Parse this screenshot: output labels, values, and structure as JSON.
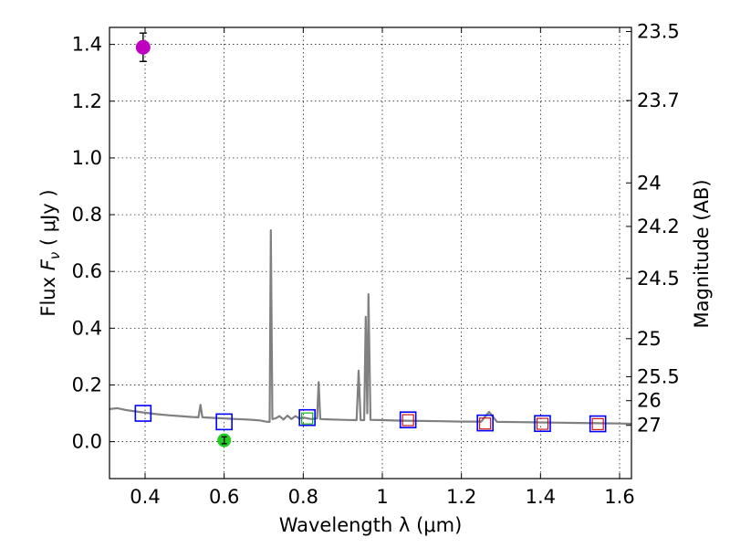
{
  "chart_data": {
    "type": "scatter",
    "title": "",
    "xlabel": "Wavelength  λ (μm)",
    "ylabel": "Flux  F_ν  ( μJy )",
    "ylabel_text": {
      "prefix": "Flux  ",
      "var": "F",
      "sub": "ν",
      "suffix": "  ( μJy )"
    },
    "ylabel_right": "Magnitude (AB)",
    "xlim": [
      0.31,
      1.63
    ],
    "ylim": [
      -0.13,
      1.46
    ],
    "grid": true,
    "x_ticks": [
      0.4,
      0.6,
      0.8,
      1.0,
      1.2,
      1.4,
      1.6
    ],
    "x_tick_labels": [
      "0.4",
      "0.6",
      "0.8",
      "1",
      "1.2",
      "1.4",
      "1.6"
    ],
    "y_ticks": [
      0.0,
      0.2,
      0.4,
      0.6,
      0.8,
      1.0,
      1.2,
      1.4
    ],
    "y_tick_labels": [
      "0.0",
      "0.2",
      "0.4",
      "0.6",
      "0.8",
      "1.0",
      "1.2",
      "1.4"
    ],
    "right_ticks": [
      {
        "label": "23.5",
        "mag": 23.5
      },
      {
        "label": "23.7",
        "mag": 23.7
      },
      {
        "label": "24",
        "mag": 24.0
      },
      {
        "label": "24.2",
        "mag": 24.2
      },
      {
        "label": "24.5",
        "mag": 24.5
      },
      {
        "label": "25",
        "mag": 25.0
      },
      {
        "label": "25.5",
        "mag": 25.5
      },
      {
        "label": "26",
        "mag": 26.0
      },
      {
        "label": "27",
        "mag": 27.0
      }
    ],
    "colors": {
      "model": "#808080",
      "model_square": "#0000ff",
      "observed_square": "#cc0000",
      "green_square": "#00aa00",
      "magenta_point": "#bf00bf",
      "green_point": "#22cc22",
      "errorbar": "#000000"
    },
    "series": [
      {
        "name": "model spectrum",
        "style": "line",
        "points": [
          [
            0.31,
            0.115
          ],
          [
            0.33,
            0.118
          ],
          [
            0.35,
            0.112
          ],
          [
            0.37,
            0.108
          ],
          [
            0.4,
            0.102
          ],
          [
            0.43,
            0.097
          ],
          [
            0.46,
            0.093
          ],
          [
            0.49,
            0.09
          ],
          [
            0.52,
            0.087
          ],
          [
            0.535,
            0.086
          ],
          [
            0.54,
            0.13
          ],
          [
            0.545,
            0.086
          ],
          [
            0.57,
            0.084
          ],
          [
            0.6,
            0.082
          ],
          [
            0.63,
            0.08
          ],
          [
            0.66,
            0.078
          ],
          [
            0.69,
            0.075
          ],
          [
            0.71,
            0.07
          ],
          [
            0.715,
            0.07
          ],
          [
            0.718,
            0.745
          ],
          [
            0.722,
            0.08
          ],
          [
            0.73,
            0.082
          ],
          [
            0.74,
            0.09
          ],
          [
            0.75,
            0.078
          ],
          [
            0.76,
            0.092
          ],
          [
            0.77,
            0.08
          ],
          [
            0.78,
            0.09
          ],
          [
            0.79,
            0.082
          ],
          [
            0.8,
            0.085
          ],
          [
            0.82,
            0.08
          ],
          [
            0.835,
            0.082
          ],
          [
            0.839,
            0.21
          ],
          [
            0.843,
            0.08
          ],
          [
            0.86,
            0.079
          ],
          [
            0.9,
            0.077
          ],
          [
            0.935,
            0.076
          ],
          [
            0.94,
            0.25
          ],
          [
            0.945,
            0.076
          ],
          [
            0.954,
            0.076
          ],
          [
            0.958,
            0.44
          ],
          [
            0.962,
            0.1
          ],
          [
            0.965,
            0.52
          ],
          [
            0.97,
            0.077
          ],
          [
            1.0,
            0.076
          ],
          [
            1.05,
            0.074
          ],
          [
            1.1,
            0.073
          ],
          [
            1.15,
            0.072
          ],
          [
            1.2,
            0.071
          ],
          [
            1.25,
            0.071
          ],
          [
            1.27,
            0.105
          ],
          [
            1.29,
            0.07
          ],
          [
            1.35,
            0.069
          ],
          [
            1.4,
            0.068
          ],
          [
            1.45,
            0.067
          ],
          [
            1.5,
            0.066
          ],
          [
            1.55,
            0.065
          ],
          [
            1.6,
            0.064
          ],
          [
            1.63,
            0.063
          ]
        ]
      },
      {
        "name": "model photometry",
        "style": "open-square",
        "points": [
          [
            0.395,
            0.1
          ],
          [
            0.6,
            0.07
          ],
          [
            0.81,
            0.085
          ],
          [
            1.065,
            0.077
          ],
          [
            1.26,
            0.066
          ],
          [
            1.405,
            0.064
          ],
          [
            1.545,
            0.063
          ]
        ]
      },
      {
        "name": "inner squares",
        "style": "open-square-small",
        "points": [
          [
            0.81,
            0.082,
            "green"
          ],
          [
            1.065,
            0.076,
            "red"
          ],
          [
            1.26,
            0.064,
            "red"
          ],
          [
            1.405,
            0.063,
            "red"
          ],
          [
            1.545,
            0.062,
            "red"
          ]
        ]
      },
      {
        "name": "observed flux",
        "style": "point-errorbar",
        "points": [
          {
            "x": 0.395,
            "y": 1.39,
            "err": 0.05,
            "color": "magenta"
          },
          {
            "x": 0.6,
            "y": 0.005,
            "err": 0.012,
            "color": "green"
          }
        ]
      }
    ]
  }
}
